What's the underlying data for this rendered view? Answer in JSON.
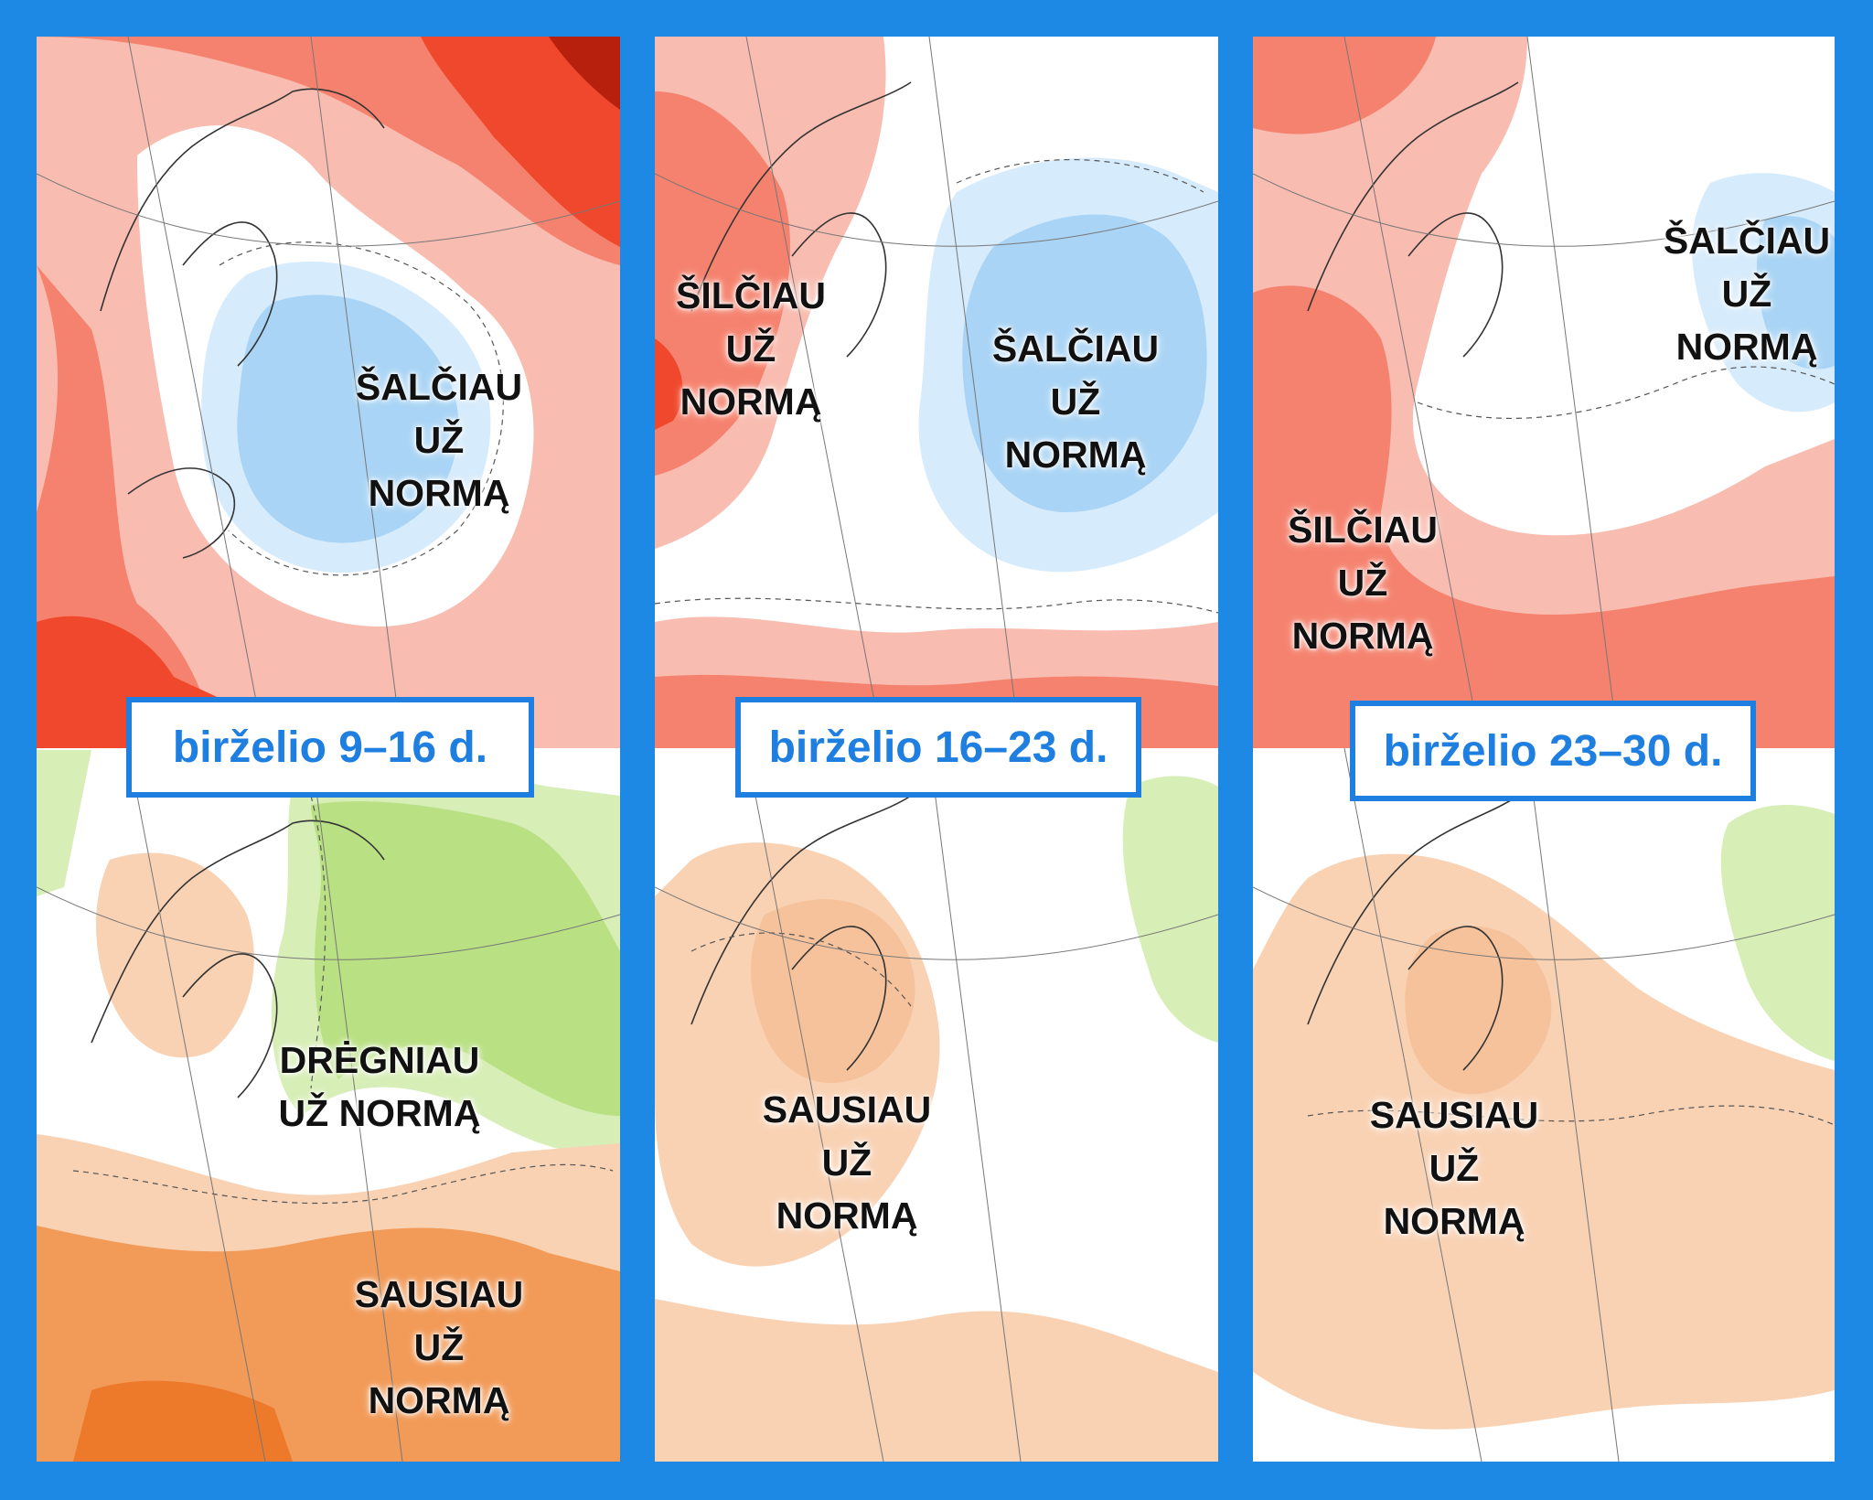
{
  "colors": {
    "frame": "#1e88e5",
    "warm_strong": "#f0482c",
    "warm_medium": "#f5826e",
    "warm_light": "#f9bcb0",
    "cold_medium": "#a9d4f5",
    "cold_light": "#d6ebfb",
    "wet_medium": "#b9e083",
    "wet_light": "#d7eeb6",
    "dry_strong": "#f29a57",
    "dry_light": "#f9d2b4",
    "date_text": "#1e7fe0"
  },
  "panels": [
    {
      "date": "birželio 9–16 d.",
      "temperature_labels": [
        {
          "lines": [
            "ŠALČIAU",
            "UŽ",
            "NORMĄ"
          ]
        }
      ],
      "precipitation_labels": [
        {
          "lines": [
            "DRĖGNIAU",
            "UŽ NORMĄ"
          ]
        },
        {
          "lines": [
            "SAUSIAU",
            "UŽ",
            "NORMĄ"
          ]
        }
      ]
    },
    {
      "date": "birželio 16–23 d.",
      "temperature_labels": [
        {
          "lines": [
            "ŠILČIAU",
            "UŽ",
            "NORMĄ"
          ]
        },
        {
          "lines": [
            "ŠALČIAU",
            "UŽ",
            "NORMĄ"
          ]
        }
      ],
      "precipitation_labels": [
        {
          "lines": [
            "SAUSIAU",
            "UŽ",
            "NORMĄ"
          ]
        }
      ]
    },
    {
      "date": "birželio 23–30 d.",
      "temperature_labels": [
        {
          "lines": [
            "ŠALČIAU",
            "UŽ",
            "NORMĄ"
          ]
        },
        {
          "lines": [
            "ŠILČIAU",
            "UŽ",
            "NORMĄ"
          ]
        }
      ],
      "precipitation_labels": [
        {
          "lines": [
            "SAUSIAU",
            "UŽ",
            "NORMĄ"
          ]
        }
      ]
    }
  ]
}
